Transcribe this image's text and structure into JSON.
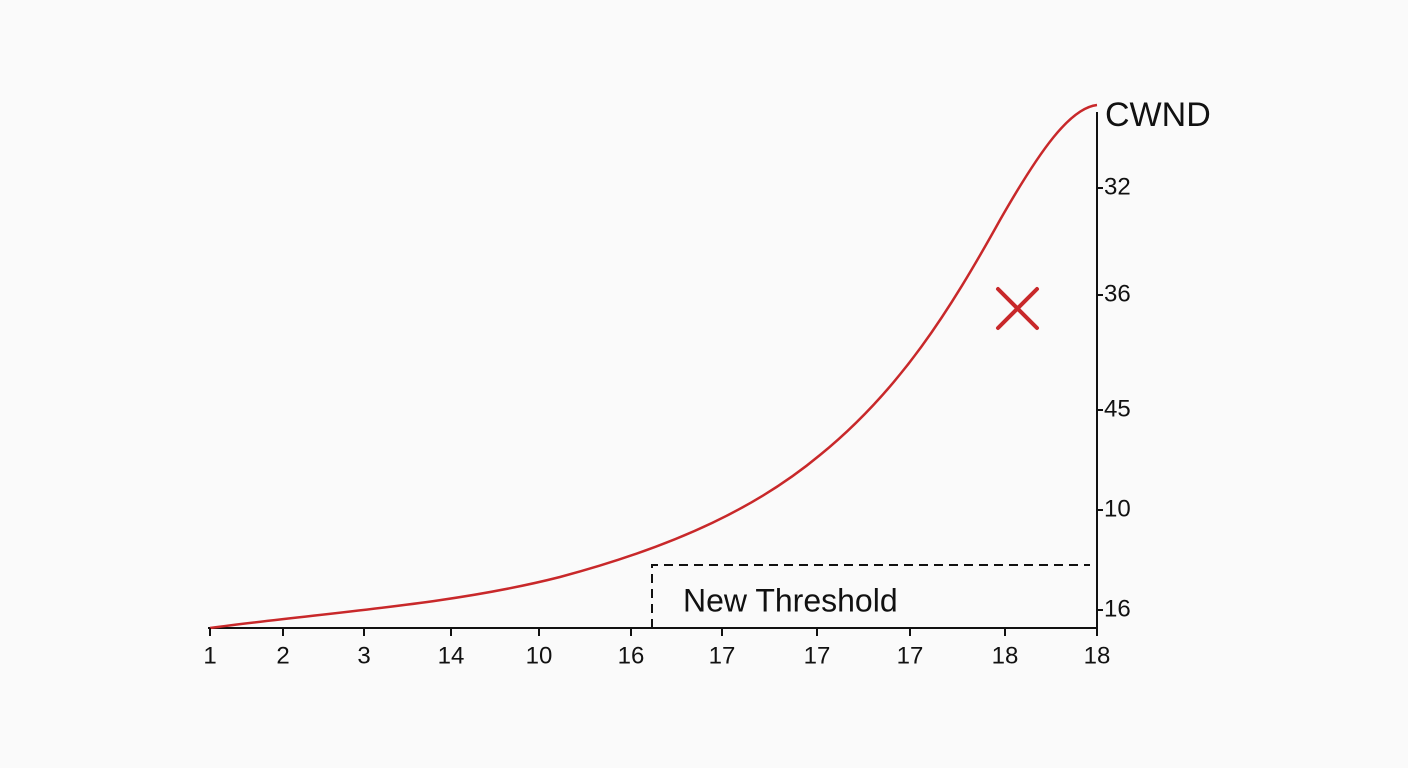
{
  "chart_data": {
    "type": "line",
    "y_axis_title": "CWND",
    "annotation": "New Threshold",
    "categories": [
      "1",
      "2",
      "3",
      "14",
      "10",
      "16",
      "17",
      "17",
      "17",
      "18",
      "18"
    ],
    "y_axis_labels": [
      "32",
      "36",
      "45",
      "10",
      "16"
    ],
    "color": "#c8282a"
  }
}
